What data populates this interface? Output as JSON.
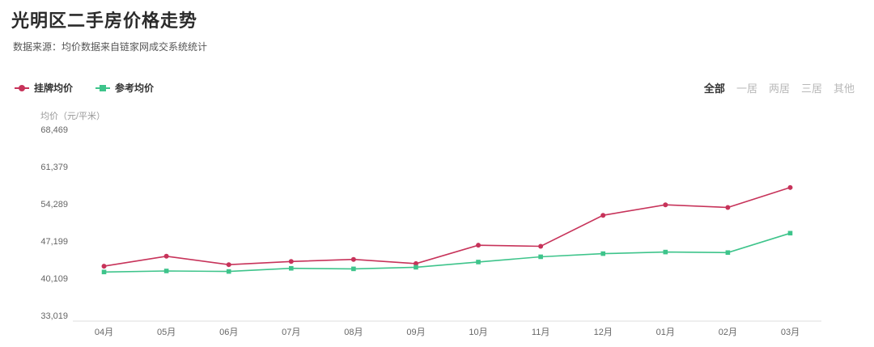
{
  "title": "光明区二手房价格走势",
  "subtitle": "数据来源：均价数据来自链家网成交系统统计",
  "filters": [
    {
      "label": "全部",
      "active": true
    },
    {
      "label": "一居",
      "active": false
    },
    {
      "label": "两居",
      "active": false
    },
    {
      "label": "三居",
      "active": false
    },
    {
      "label": "其他",
      "active": false
    }
  ],
  "colors": {
    "listing": "#c7335a",
    "reference": "#3ec48b",
    "grid": "#e6e6e6"
  },
  "chart_data": {
    "type": "line",
    "title": "光明区二手房价格走势",
    "ylabel": "均价（元/平米）",
    "xlabel": "",
    "categories": [
      "04月",
      "05月",
      "06月",
      "07月",
      "08月",
      "09月",
      "10月",
      "11月",
      "12月",
      "01月",
      "02月",
      "03月"
    ],
    "yticks": [
      "33,019",
      "40,109",
      "47,199",
      "54,289",
      "61,379",
      "68,469"
    ],
    "ylim": [
      33019,
      68469
    ],
    "grid": false,
    "legend_position": "top-left",
    "series": [
      {
        "name": "挂牌均价",
        "marker": "circle",
        "values": [
          42400,
          44300,
          42700,
          43300,
          43700,
          42900,
          46400,
          46200,
          52100,
          54100,
          53600,
          57400
        ]
      },
      {
        "name": "参考均价",
        "marker": "square",
        "values": [
          41300,
          41500,
          41400,
          42000,
          41900,
          42200,
          43200,
          44200,
          44800,
          45100,
          45000,
          48700
        ]
      }
    ]
  }
}
